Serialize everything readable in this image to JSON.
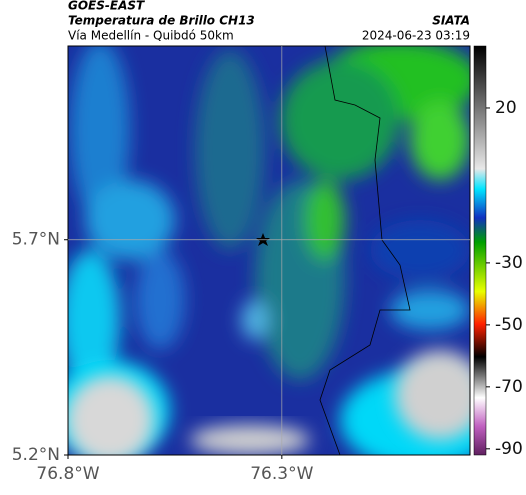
{
  "header": {
    "source": "GOES-EAST",
    "title": "Temperatura de Brillo CH13",
    "subtitle": "Vía Medellín - Quibdó 50km",
    "agency": "SIATA",
    "datetime": "2024-06-23 03:19"
  },
  "map": {
    "xlim": [
      -76.8,
      -75.86
    ],
    "ylim": [
      5.2,
      6.15
    ],
    "xticks": [
      {
        "value": -76.8,
        "label": "76.8°W"
      },
      {
        "value": -76.3,
        "label": "76.3°W"
      }
    ],
    "yticks": [
      {
        "value": 5.7,
        "label": "5.7°N"
      },
      {
        "value": 5.2,
        "label": "5.2°N"
      }
    ],
    "grid": true
  },
  "colorbar": {
    "lim": [
      -92,
      40
    ],
    "ticks": [
      20,
      -30,
      -50,
      -70,
      -90
    ]
  }
}
